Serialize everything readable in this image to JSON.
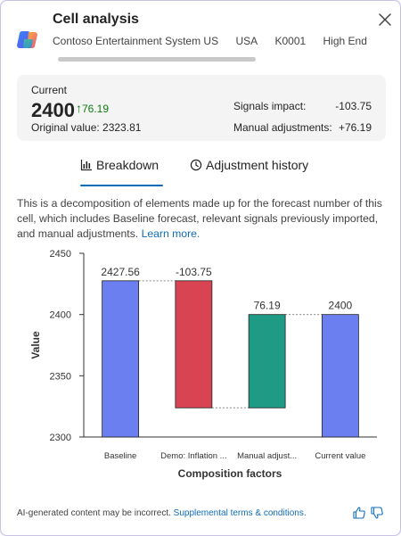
{
  "header": {
    "title": "Cell analysis",
    "crumbs": [
      "Contoso Entertainment System US",
      "USA",
      "K0001",
      "High End C"
    ]
  },
  "summary": {
    "current_label": "Current",
    "current_value": "2400",
    "current_delta": "76.19",
    "original_value": "Original value: 2323.81",
    "signals_label": "Signals impact:",
    "signals_value": "-103.75",
    "manual_label": "Manual adjustments:",
    "manual_value": "+76.19"
  },
  "tabs": [
    {
      "label": "Breakdown",
      "icon": "bar-chart-icon",
      "selected": true
    },
    {
      "label": "Adjustment history",
      "icon": "history-icon",
      "selected": false
    }
  ],
  "description": {
    "text": "This is a decomposition of elements made up for the forecast number of this cell, which includes Baseline forecast, relevant signals previously imported, and manual adjustments.",
    "link": "Learn more."
  },
  "chart_data": {
    "type": "bar",
    "subtype": "waterfall",
    "xlabel": "Composition factors",
    "ylabel": "Value",
    "ylim": [
      2300,
      2450
    ],
    "yticks": [
      2300,
      2350,
      2400,
      2450
    ],
    "categories": [
      "Baseline",
      "Demo: Inflation ...",
      "Manual adjust...",
      "Current value"
    ],
    "bars": [
      {
        "start": 2300,
        "end": 2427.56,
        "label": "2427.56",
        "color": "#6b7ff0"
      },
      {
        "start": 2427.56,
        "end": 2323.81,
        "label": "-103.75",
        "color": "#d94452"
      },
      {
        "start": 2323.81,
        "end": 2400,
        "label": "76.19",
        "color": "#1f9a84"
      },
      {
        "start": 2300,
        "end": 2400,
        "label": "2400",
        "color": "#6b7ff0"
      }
    ],
    "grid": false
  },
  "footer": {
    "text": "AI-generated content may be incorrect.",
    "link": "Supplemental terms & conditions."
  },
  "colors": {
    "accent": "#0f6cbd",
    "positive": "#107c10"
  }
}
